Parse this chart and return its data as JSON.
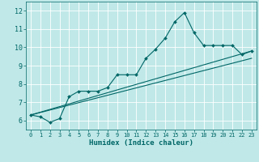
{
  "xlabel": "Humidex (Indice chaleur)",
  "ylabel": "",
  "bg_color": "#c0e8e8",
  "grid_color": "#ffffff",
  "line_color": "#006666",
  "xlim": [
    -0.5,
    23.5
  ],
  "ylim": [
    5.5,
    12.5
  ],
  "yticks": [
    6,
    7,
    8,
    9,
    10,
    11,
    12
  ],
  "xticks": [
    0,
    1,
    2,
    3,
    4,
    5,
    6,
    7,
    8,
    9,
    10,
    11,
    12,
    13,
    14,
    15,
    16,
    17,
    18,
    19,
    20,
    21,
    22,
    23
  ],
  "main_line_x": [
    0,
    1,
    2,
    3,
    4,
    5,
    6,
    7,
    8,
    9,
    10,
    11,
    12,
    13,
    14,
    15,
    16,
    17,
    18,
    19,
    20,
    21,
    22,
    23
  ],
  "main_line_y": [
    6.3,
    6.2,
    5.9,
    6.1,
    7.3,
    7.6,
    7.6,
    7.6,
    7.8,
    8.5,
    8.5,
    8.5,
    9.4,
    9.9,
    10.5,
    11.4,
    11.9,
    10.8,
    10.1,
    10.1,
    10.1,
    10.1,
    9.6,
    9.8
  ],
  "line2_x": [
    0,
    23
  ],
  "line2_y": [
    6.3,
    9.8
  ],
  "line3_x": [
    0,
    23
  ],
  "line3_y": [
    6.3,
    9.4
  ]
}
